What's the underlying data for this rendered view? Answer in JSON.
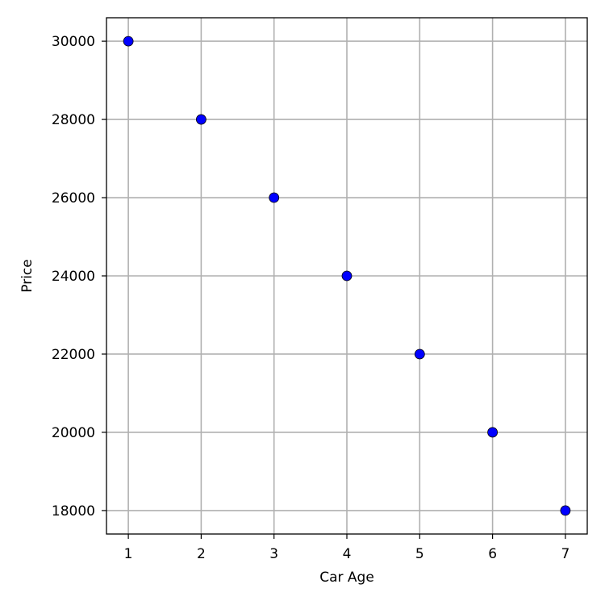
{
  "chart_data": {
    "type": "scatter",
    "title": "",
    "xlabel": "Car Age",
    "ylabel": "Price",
    "xlim": [
      0.7,
      7.3
    ],
    "ylim": [
      17400,
      30600
    ],
    "x_ticks": [
      1,
      2,
      3,
      4,
      5,
      6,
      7
    ],
    "y_ticks": [
      18000,
      20000,
      22000,
      24000,
      26000,
      28000,
      30000
    ],
    "grid": true,
    "marker_color": "#0000ff",
    "marker_edge_color": "#000000",
    "series": [
      {
        "x": [
          1,
          2,
          3,
          4,
          5,
          6,
          7
        ],
        "y": [
          30000,
          28000,
          26000,
          24000,
          22000,
          20000,
          18000
        ]
      }
    ]
  }
}
